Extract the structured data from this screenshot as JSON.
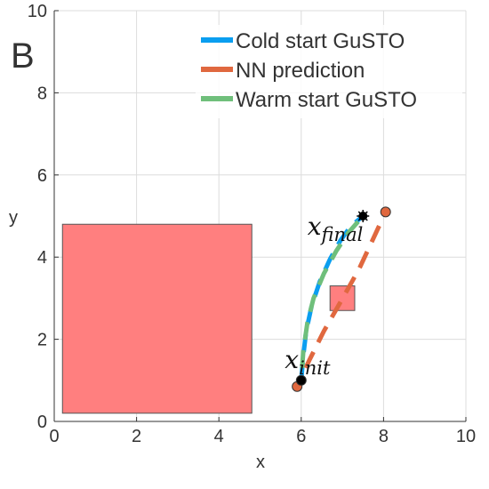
{
  "panel_label": "B",
  "chart_data": {
    "type": "line",
    "title": "",
    "xlabel": "x",
    "ylabel": "y",
    "xlim": [
      0,
      10
    ],
    "ylim": [
      0,
      10
    ],
    "xticks": [
      0,
      2,
      4,
      6,
      8,
      10
    ],
    "yticks": [
      0,
      2,
      4,
      6,
      8,
      10
    ],
    "grid": true,
    "legend_position": "top-right",
    "obstacles": [
      {
        "x0": 0.2,
        "y0": 0.2,
        "x1": 4.8,
        "y1": 4.8,
        "color": "#ff7f7f"
      },
      {
        "x0": 6.7,
        "y0": 2.7,
        "x1": 7.3,
        "y1": 3.3,
        "color": "#ff7f7f"
      }
    ],
    "series": [
      {
        "name": "Cold start GuSTO",
        "color": "#0a9ef0",
        "dash": "20 12",
        "points": [
          [
            6.0,
            1.0
          ],
          [
            6.05,
            1.6
          ],
          [
            6.12,
            2.2
          ],
          [
            6.25,
            2.8
          ],
          [
            6.45,
            3.4
          ],
          [
            6.7,
            3.95
          ],
          [
            6.95,
            4.4
          ],
          [
            7.2,
            4.75
          ],
          [
            7.5,
            5.0
          ]
        ]
      },
      {
        "name": "NN prediction",
        "color": "#e0683f",
        "dash": "20 12",
        "points": [
          [
            5.9,
            0.85
          ],
          [
            6.2,
            1.5
          ],
          [
            6.55,
            2.2
          ],
          [
            6.95,
            2.9
          ],
          [
            7.4,
            3.7
          ],
          [
            7.75,
            4.45
          ],
          [
            8.05,
            5.1
          ]
        ]
      },
      {
        "name": "Warm start GuSTO",
        "color": "#6fbf7b",
        "dash": "20 12",
        "points": [
          [
            6.0,
            1.0
          ],
          [
            6.05,
            1.7
          ],
          [
            6.15,
            2.4
          ],
          [
            6.3,
            3.0
          ],
          [
            6.55,
            3.6
          ],
          [
            6.85,
            4.15
          ],
          [
            7.15,
            4.6
          ],
          [
            7.5,
            5.0
          ]
        ]
      }
    ],
    "markers": [
      {
        "name": "NN start",
        "x": 5.9,
        "y": 0.85,
        "color": "#e0683f"
      },
      {
        "name": "NN end",
        "x": 8.05,
        "y": 5.1,
        "color": "#e0683f"
      },
      {
        "name": "initial point",
        "x": 6.0,
        "y": 1.0,
        "color": "#000000"
      },
      {
        "name": "final point",
        "x": 7.5,
        "y": 5.0,
        "color": "#000000"
      }
    ],
    "annotations": [
      {
        "name": "x-init-label",
        "base": "x",
        "sub": "init",
        "x": 5.6,
        "y": 1.3
      },
      {
        "name": "x-final-label",
        "base": "x",
        "sub": "final",
        "x": 6.15,
        "y": 4.55
      }
    ]
  }
}
